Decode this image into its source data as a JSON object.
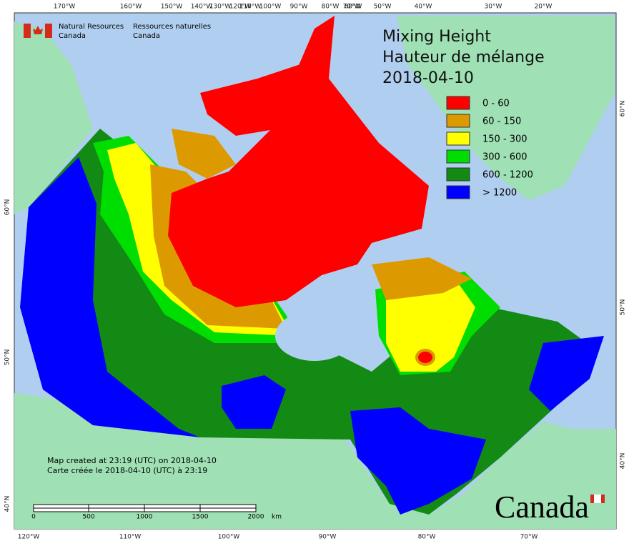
{
  "header": {
    "agency_en": [
      "Natural Resources",
      "Canada"
    ],
    "agency_fr": [
      "Ressources naturelles",
      "Canada"
    ]
  },
  "title": {
    "en": "Mixing Height",
    "fr": "Hauteur de mélange",
    "date": "2018-04-10"
  },
  "legend": [
    {
      "label": "0 - 60",
      "color": "#ff0000"
    },
    {
      "label": "60 - 150",
      "color": "#dd9a00"
    },
    {
      "label": "150 - 300",
      "color": "#ffff00"
    },
    {
      "label": "300 - 600",
      "color": "#00dd00"
    },
    {
      "label": "600 - 1200",
      "color": "#138a13"
    },
    {
      "label": "> 1200",
      "color": "#0000ff"
    }
  ],
  "graticule": {
    "top": [
      "170°W",
      "160°W",
      "150°W",
      "140°W",
      "130°W",
      "120°W",
      "110°W",
      "100°W",
      "90°W",
      "80°W",
      "70°W",
      "60°W",
      "50°W",
      "40°W",
      "30°W",
      "20°W"
    ],
    "bottom": [
      "120°W",
      "110°W",
      "100°W",
      "90°W",
      "80°W",
      "70°W"
    ],
    "left": [
      "60°N",
      "50°N",
      "40°N"
    ],
    "right": [
      "60°N",
      "50°N",
      "40°N"
    ]
  },
  "scale": {
    "labels": [
      "0",
      "500",
      "1000",
      "1500",
      "2000"
    ],
    "unit": "km"
  },
  "footer": [
    "Map created at 23:19 (UTC) on 2018-04-10",
    "Carte créée le 2018-04-10 (UTC) à 23:19"
  ],
  "wordmark": "Canada"
}
